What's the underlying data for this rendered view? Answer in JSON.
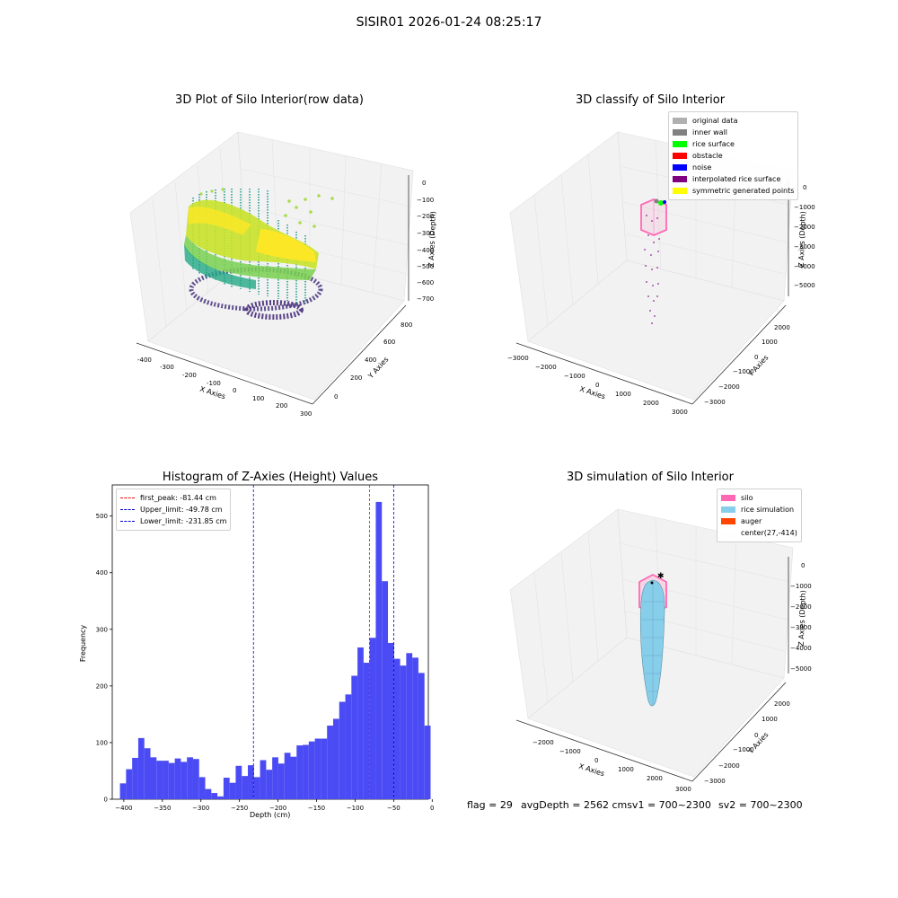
{
  "figure_title": "SISIR01 2026-01-24 08:25:17",
  "status": {
    "flag": "flag = 29",
    "avg": "avgDepth = 2562 cmsv1 = 700~2300",
    "sv2": "sv2 = 700~2300"
  },
  "colors": {
    "hist_bar": "#4b4bf5",
    "first_peak": "#ff0000",
    "limits": "#0000cc",
    "silo": "#ff69b4",
    "rice_sim": "#87ceeb",
    "auger": "#ff4500"
  },
  "chart_data": [
    {
      "type": "scatter",
      "subtype": "3d",
      "title": "3D Plot of Silo Interior(row data)",
      "xlabel": "X Axies",
      "ylabel": "Y Axies",
      "zlabel": "Z Axies (Depth)",
      "x_ticks": [
        "-400",
        "-300",
        "-200",
        "-100",
        "0",
        "100",
        "200",
        "300"
      ],
      "y_ticks": [
        "0",
        "200",
        "400",
        "600",
        "800"
      ],
      "z_ticks": [
        "0",
        "−100",
        "−200",
        "−300",
        "−400",
        "−500",
        "−600",
        "−700"
      ],
      "colormap": "viridis"
    },
    {
      "type": "scatter",
      "subtype": "3d",
      "title": "3D classify of Silo Interior",
      "xlabel": "X Axies",
      "ylabel": "Y Axies",
      "zlabel": "Z Axies (Depth)",
      "x_ticks": [
        "−3000",
        "−2000",
        "−1000",
        "0",
        "1000",
        "2000",
        "3000"
      ],
      "y_ticks": [
        "−3000",
        "−2000",
        "−1000",
        "0",
        "1000",
        "2000"
      ],
      "z_ticks": [
        "0",
        "−1000",
        "−2000",
        "−3000",
        "−4000",
        "−5000"
      ],
      "legend": [
        {
          "name": "original data",
          "color": "#b0b0b0"
        },
        {
          "name": "inner wall",
          "color": "#808080"
        },
        {
          "name": "rice surface",
          "color": "#00ff00"
        },
        {
          "name": "obstacle",
          "color": "#ff0000"
        },
        {
          "name": "noise",
          "color": "#0000ff"
        },
        {
          "name": "interpolated rice surface",
          "color": "#800080"
        },
        {
          "name": "symmetric generated points",
          "color": "#ffff00"
        }
      ]
    },
    {
      "type": "bar",
      "subtype": "histogram",
      "title": "Histogram of Z-Axies (Height) Values",
      "xlabel": "Depth (cm)",
      "ylabel": "Frequency",
      "xlim": [
        -415,
        -5
      ],
      "ylim": [
        0,
        555
      ],
      "x_ticks": [
        -400,
        -350,
        -300,
        -250,
        -200,
        -150,
        -100,
        -50,
        0
      ],
      "y_ticks": [
        0,
        100,
        200,
        300,
        400,
        500
      ],
      "bin_start": -405,
      "bin_width": 7.9,
      "values": [
        28,
        53,
        73,
        108,
        90,
        74,
        68,
        68,
        64,
        72,
        66,
        74,
        71,
        39,
        18,
        11,
        5,
        38,
        29,
        59,
        41,
        60,
        39,
        69,
        52,
        74,
        63,
        82,
        75,
        95,
        96,
        102,
        107,
        107,
        130,
        142,
        172,
        185,
        218,
        268,
        241,
        285,
        525,
        385,
        276,
        248,
        236,
        258,
        250,
        223,
        130
      ],
      "lines": [
        {
          "name": "first_peak: -81.44 cm",
          "x": -81.44,
          "color": "#ff0000"
        },
        {
          "name": "Upper_limit: -49.78 cm",
          "x": -49.78,
          "color": "#0000cc"
        },
        {
          "name": "Lower_limit: -231.85 cm",
          "x": -231.85,
          "color": "#0000cc"
        }
      ]
    },
    {
      "type": "scatter",
      "subtype": "3d-surface",
      "title": "3D simulation of Silo Interior",
      "xlabel": "X Axies",
      "ylabel": "Y Axies",
      "zlabel": "Z Axies (Depth)",
      "x_ticks": [
        "−2000",
        "−1000",
        "0",
        "1000",
        "2000",
        "3000"
      ],
      "y_ticks": [
        "−3000",
        "−2000",
        "−1000",
        "0",
        "1000",
        "2000"
      ],
      "z_ticks": [
        "0",
        "−1000",
        "−2000",
        "−3000",
        "−4000",
        "−5000"
      ],
      "legend": [
        {
          "name": "silo",
          "color": "#ff69b4"
        },
        {
          "name": "rice simulation",
          "color": "#87ceeb"
        },
        {
          "name": "auger",
          "color": "#ff4500"
        },
        {
          "name": "center(27,-414)",
          "color": ""
        }
      ]
    }
  ]
}
